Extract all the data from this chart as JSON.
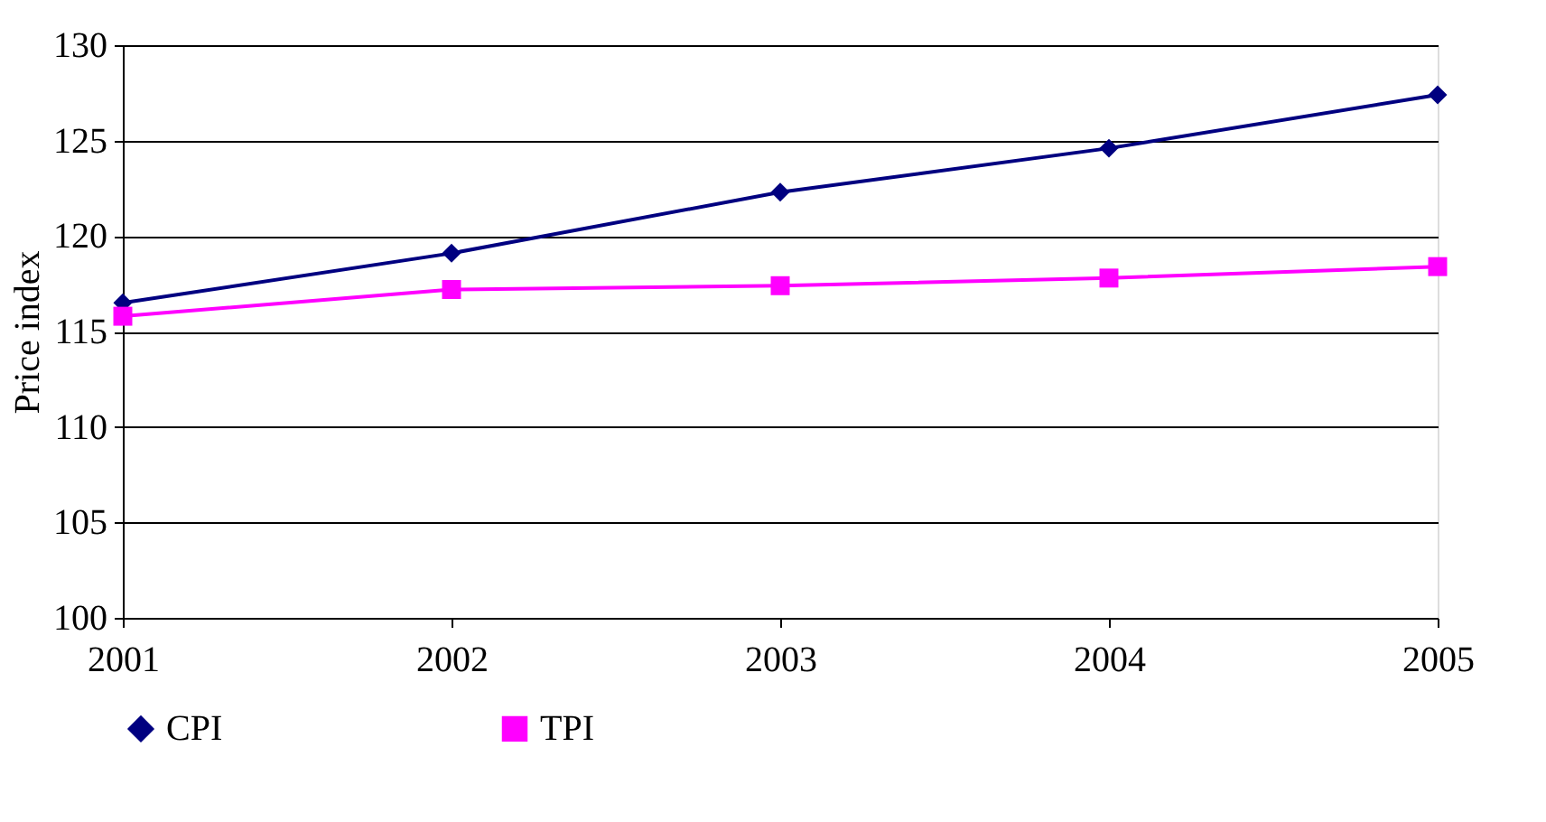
{
  "chart_data": {
    "type": "line",
    "ylabel": "Price index",
    "x": [
      2001,
      2002,
      2003,
      2004,
      2005
    ],
    "series": [
      {
        "name": "CPI",
        "color": "#000080",
        "marker": "diamond",
        "values": [
          116.5,
          119.1,
          122.3,
          124.6,
          127.4
        ]
      },
      {
        "name": "TPI",
        "color": "#ff00ff",
        "marker": "square",
        "values": [
          115.8,
          117.2,
          117.4,
          117.8,
          118.4
        ]
      }
    ],
    "xlim": [
      2001,
      2005
    ],
    "xticks": [
      2001,
      2002,
      2003,
      2004,
      2005
    ],
    "ylim": [
      100,
      130
    ],
    "yticks": [
      100,
      105,
      110,
      115,
      120,
      125,
      130
    ],
    "grid": "y",
    "legend": "bottom",
    "line_style": "solid"
  }
}
